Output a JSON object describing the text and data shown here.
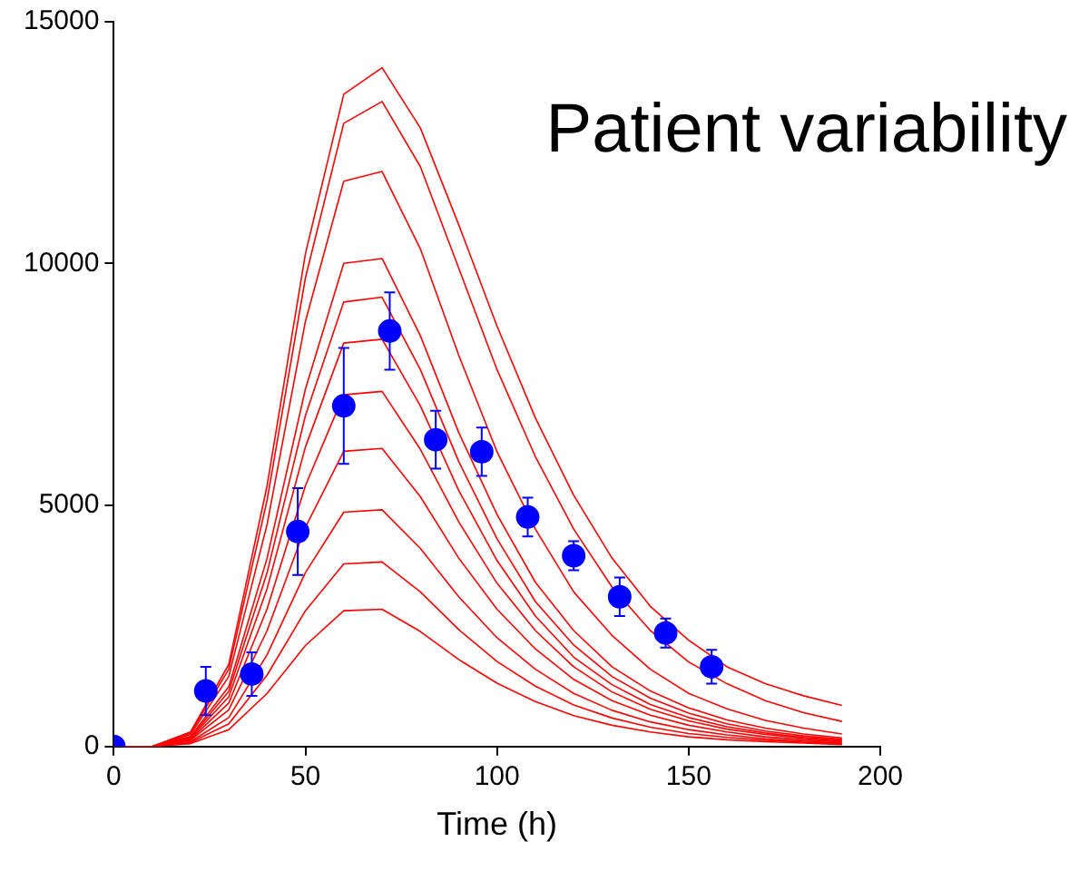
{
  "chart_data": {
    "type": "line",
    "xlabel": "Time (h)",
    "annotations": [
      "Patient variability"
    ],
    "xlim": [
      0,
      200
    ],
    "xticks": [
      0,
      50,
      100,
      150,
      200
    ],
    "ylim": [
      0,
      15000
    ],
    "yticks": [
      0,
      5000,
      10000,
      15000
    ],
    "grid": false,
    "legend": false,
    "line_style": "solid",
    "x": [
      0,
      10,
      20,
      30,
      40,
      50,
      60,
      70,
      80,
      90,
      100,
      110,
      120,
      130,
      140,
      150,
      160,
      170,
      180,
      190
    ],
    "series": [
      {
        "type": "line",
        "color": "#ff0000",
        "values": [
          0,
          0,
          300,
          1700,
          5400,
          10200,
          13500,
          14050,
          12800,
          10800,
          8700,
          6800,
          5200,
          3900,
          2900,
          2200,
          1650,
          1300,
          1050,
          850
        ]
      },
      {
        "type": "line",
        "color": "#ff0000",
        "values": [
          0,
          0,
          280,
          1600,
          5100,
          9700,
          12900,
          13350,
          12000,
          9900,
          7800,
          6000,
          4500,
          3300,
          2400,
          1750,
          1300,
          950,
          700,
          520
        ]
      },
      {
        "type": "line",
        "color": "#ff0000",
        "values": [
          0,
          0,
          250,
          1450,
          4600,
          8800,
          11700,
          11900,
          10300,
          8100,
          6100,
          4500,
          3200,
          2300,
          1600,
          1100,
          780,
          540,
          380,
          260
        ]
      },
      {
        "type": "line",
        "color": "#ff0000",
        "values": [
          0,
          0,
          210,
          1240,
          3900,
          7400,
          10000,
          10100,
          8500,
          6500,
          4800,
          3400,
          2400,
          1650,
          1150,
          800,
          550,
          380,
          260,
          180
        ]
      },
      {
        "type": "line",
        "color": "#ff0000",
        "values": [
          0,
          0,
          190,
          1140,
          3600,
          6850,
          9200,
          9300,
          7800,
          5900,
          4300,
          3000,
          2100,
          1450,
          1000,
          690,
          470,
          320,
          220,
          150
        ]
      },
      {
        "type": "line",
        "color": "#ff0000",
        "values": [
          0,
          0,
          170,
          1030,
          3270,
          6200,
          8350,
          8430,
          7050,
          5300,
          3850,
          2700,
          1850,
          1280,
          870,
          600,
          410,
          280,
          190,
          130
        ]
      },
      {
        "type": "line",
        "color": "#ff0000",
        "values": [
          0,
          0,
          150,
          900,
          2850,
          5400,
          7280,
          7350,
          6150,
          4650,
          3380,
          2400,
          1650,
          1130,
          770,
          530,
          360,
          250,
          170,
          110
        ]
      },
      {
        "type": "line",
        "color": "#ff0000",
        "values": [
          0,
          0,
          130,
          760,
          2400,
          4540,
          6110,
          6170,
          5170,
          3900,
          2840,
          2020,
          1390,
          950,
          650,
          440,
          300,
          200,
          140,
          90
        ]
      },
      {
        "type": "line",
        "color": "#ff0000",
        "values": [
          0,
          0,
          100,
          600,
          1900,
          3600,
          4850,
          4900,
          4100,
          3100,
          2250,
          1600,
          1100,
          750,
          510,
          350,
          240,
          160,
          110,
          70
        ]
      },
      {
        "type": "line",
        "color": "#ff0000",
        "values": [
          0,
          0,
          80,
          470,
          1480,
          2810,
          3780,
          3820,
          3200,
          2420,
          1760,
          1250,
          860,
          590,
          400,
          270,
          190,
          130,
          90,
          60
        ]
      },
      {
        "type": "line",
        "color": "#ff0000",
        "values": [
          0,
          0,
          60,
          350,
          1100,
          2090,
          2810,
          2840,
          2380,
          1800,
          1310,
          930,
          640,
          440,
          300,
          200,
          140,
          100,
          70,
          40
        ]
      },
      {
        "type": "scatter",
        "color": "#0000ff",
        "marker": "circle",
        "x": [
          0,
          24,
          36,
          48,
          60,
          72,
          84,
          96,
          108,
          120,
          132,
          144,
          156
        ],
        "values": [
          0,
          1150,
          1500,
          4450,
          7050,
          8600,
          6350,
          6100,
          4750,
          3950,
          3100,
          2350,
          1650
        ],
        "errors": [
          null,
          500,
          450,
          900,
          1200,
          800,
          600,
          500,
          400,
          300,
          400,
          300,
          350
        ]
      }
    ]
  }
}
